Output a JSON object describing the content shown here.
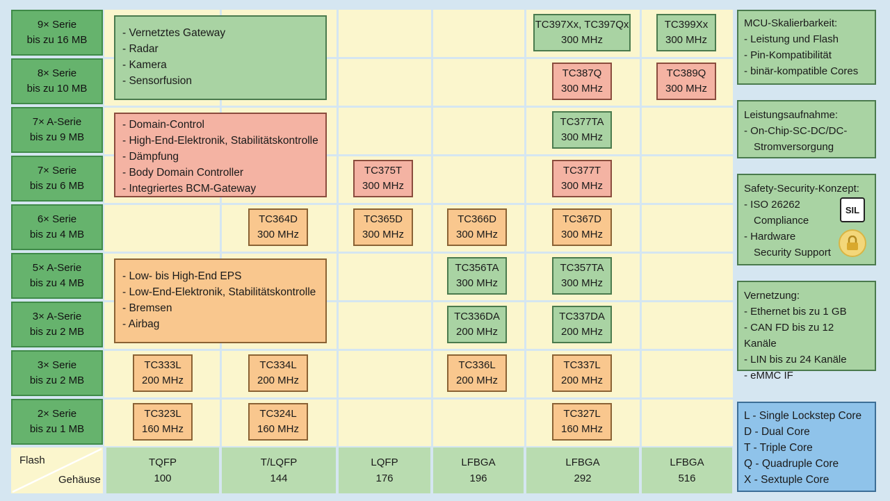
{
  "rows": [
    {
      "series": "9× Serie",
      "flash": "bis zu 16 MB"
    },
    {
      "series": "8× Serie",
      "flash": "bis zu 10 MB"
    },
    {
      "series": "7× A-Serie",
      "flash": "bis zu 9 MB"
    },
    {
      "series": "7× Serie",
      "flash": "bis zu 6 MB"
    },
    {
      "series": "6× Serie",
      "flash": "bis zu 4 MB"
    },
    {
      "series": "5× A-Serie",
      "flash": "bis zu 4 MB"
    },
    {
      "series": "3× A-Serie",
      "flash": "bis zu 2 MB"
    },
    {
      "series": "3× Serie",
      "flash": "bis zu 2 MB"
    },
    {
      "series": "2× Serie",
      "flash": "bis zu 1 MB"
    }
  ],
  "axis": {
    "flash": "Flash",
    "package": "Gehäuse"
  },
  "packages": [
    {
      "type": "TQFP",
      "pins": "100"
    },
    {
      "type": "T/LQFP",
      "pins": "144"
    },
    {
      "type": "LQFP",
      "pins": "176"
    },
    {
      "type": "LFBGA",
      "pins": "196"
    },
    {
      "type": "LFBGA",
      "pins": "292"
    },
    {
      "type": "LFBGA",
      "pins": "516"
    }
  ],
  "applications": {
    "gateway": [
      "- Vernetztes Gateway",
      "- Radar",
      "- Kamera",
      "- Sensorfusion"
    ],
    "domain": [
      "- Domain-Control",
      "- High-End-Elektronik, Stabilitätskontrolle",
      "- Dämpfung",
      "- Body Domain Controller",
      "- Integriertes BCM-Gateway"
    ],
    "eps": [
      "- Low- bis High-End EPS",
      "- Low-End-Elektronik, Stabilitätskontrolle",
      "- Bremsen",
      "- Airbag"
    ]
  },
  "chips": {
    "tc397": {
      "name": "TC397Xx, TC397Qx",
      "freq": "300 MHz",
      "color": "green"
    },
    "tc399": {
      "name": "TC399Xx",
      "freq": "300 MHz",
      "color": "green"
    },
    "tc387": {
      "name": "TC387Q",
      "freq": "300 MHz",
      "color": "red"
    },
    "tc389": {
      "name": "TC389Q",
      "freq": "300 MHz",
      "color": "red"
    },
    "tc377ta": {
      "name": "TC377TA",
      "freq": "300 MHz",
      "color": "green"
    },
    "tc375t": {
      "name": "TC375T",
      "freq": "300 MHz",
      "color": "red"
    },
    "tc377t": {
      "name": "TC377T",
      "freq": "300 MHz",
      "color": "red"
    },
    "tc364d": {
      "name": "TC364D",
      "freq": "300 MHz",
      "color": "orange"
    },
    "tc365d": {
      "name": "TC365D",
      "freq": "300 MHz",
      "color": "orange"
    },
    "tc366d": {
      "name": "TC366D",
      "freq": "300 MHz",
      "color": "orange"
    },
    "tc367d": {
      "name": "TC367D",
      "freq": "300 MHz",
      "color": "orange"
    },
    "tc356ta": {
      "name": "TC356TA",
      "freq": "300 MHz",
      "color": "green"
    },
    "tc357ta": {
      "name": "TC357TA",
      "freq": "300 MHz",
      "color": "green"
    },
    "tc336da": {
      "name": "TC336DA",
      "freq": "200 MHz",
      "color": "green"
    },
    "tc337da": {
      "name": "TC337DA",
      "freq": "200 MHz",
      "color": "green"
    },
    "tc333l": {
      "name": "TC333L",
      "freq": "200 MHz",
      "color": "orange"
    },
    "tc334l": {
      "name": "TC334L",
      "freq": "200 MHz",
      "color": "orange"
    },
    "tc336l": {
      "name": "TC336L",
      "freq": "200 MHz",
      "color": "orange"
    },
    "tc337l": {
      "name": "TC337L",
      "freq": "200 MHz",
      "color": "orange"
    },
    "tc323l": {
      "name": "TC323L",
      "freq": "160 MHz",
      "color": "orange"
    },
    "tc324l": {
      "name": "TC324L",
      "freq": "160 MHz",
      "color": "orange"
    },
    "tc327l": {
      "name": "TC327L",
      "freq": "160 MHz",
      "color": "orange"
    }
  },
  "side": {
    "scalability": [
      "MCU-Skalierbarkeit:",
      "- Leistung und Flash",
      "- Pin-Kompatibilität",
      "- binär-kompatible Cores"
    ],
    "power": [
      "Leistungsaufnahme:",
      "- On-Chip-SC-DC/DC-",
      "  Stromversorgung"
    ],
    "safety": [
      "Safety-Security-Konzept:",
      "- ISO 26262",
      "  Compliance",
      "- Hardware",
      "  Security Support"
    ],
    "safety_icons": [
      "sil-icon",
      "lock-icon"
    ],
    "sil_text": "SIL",
    "network": [
      "Vernetzung:",
      "- Ethernet bis zu 1 GB",
      "- CAN FD bis zu 12 Kanäle",
      "- LIN bis zu 24 Kanäle",
      "- eMMC IF"
    ],
    "legend": [
      "L - Single Lockstep Core",
      "D - Dual Core",
      "T - Triple Core",
      "Q - Quadruple Core",
      "X - Sextuple Core"
    ]
  },
  "colors": {
    "green": "#a9d3a3",
    "red": "#f4b3a3",
    "orange": "#f9c78e",
    "label": "#66b36d",
    "cream": "#fbf6cd",
    "blue": "#8fc3ea"
  }
}
